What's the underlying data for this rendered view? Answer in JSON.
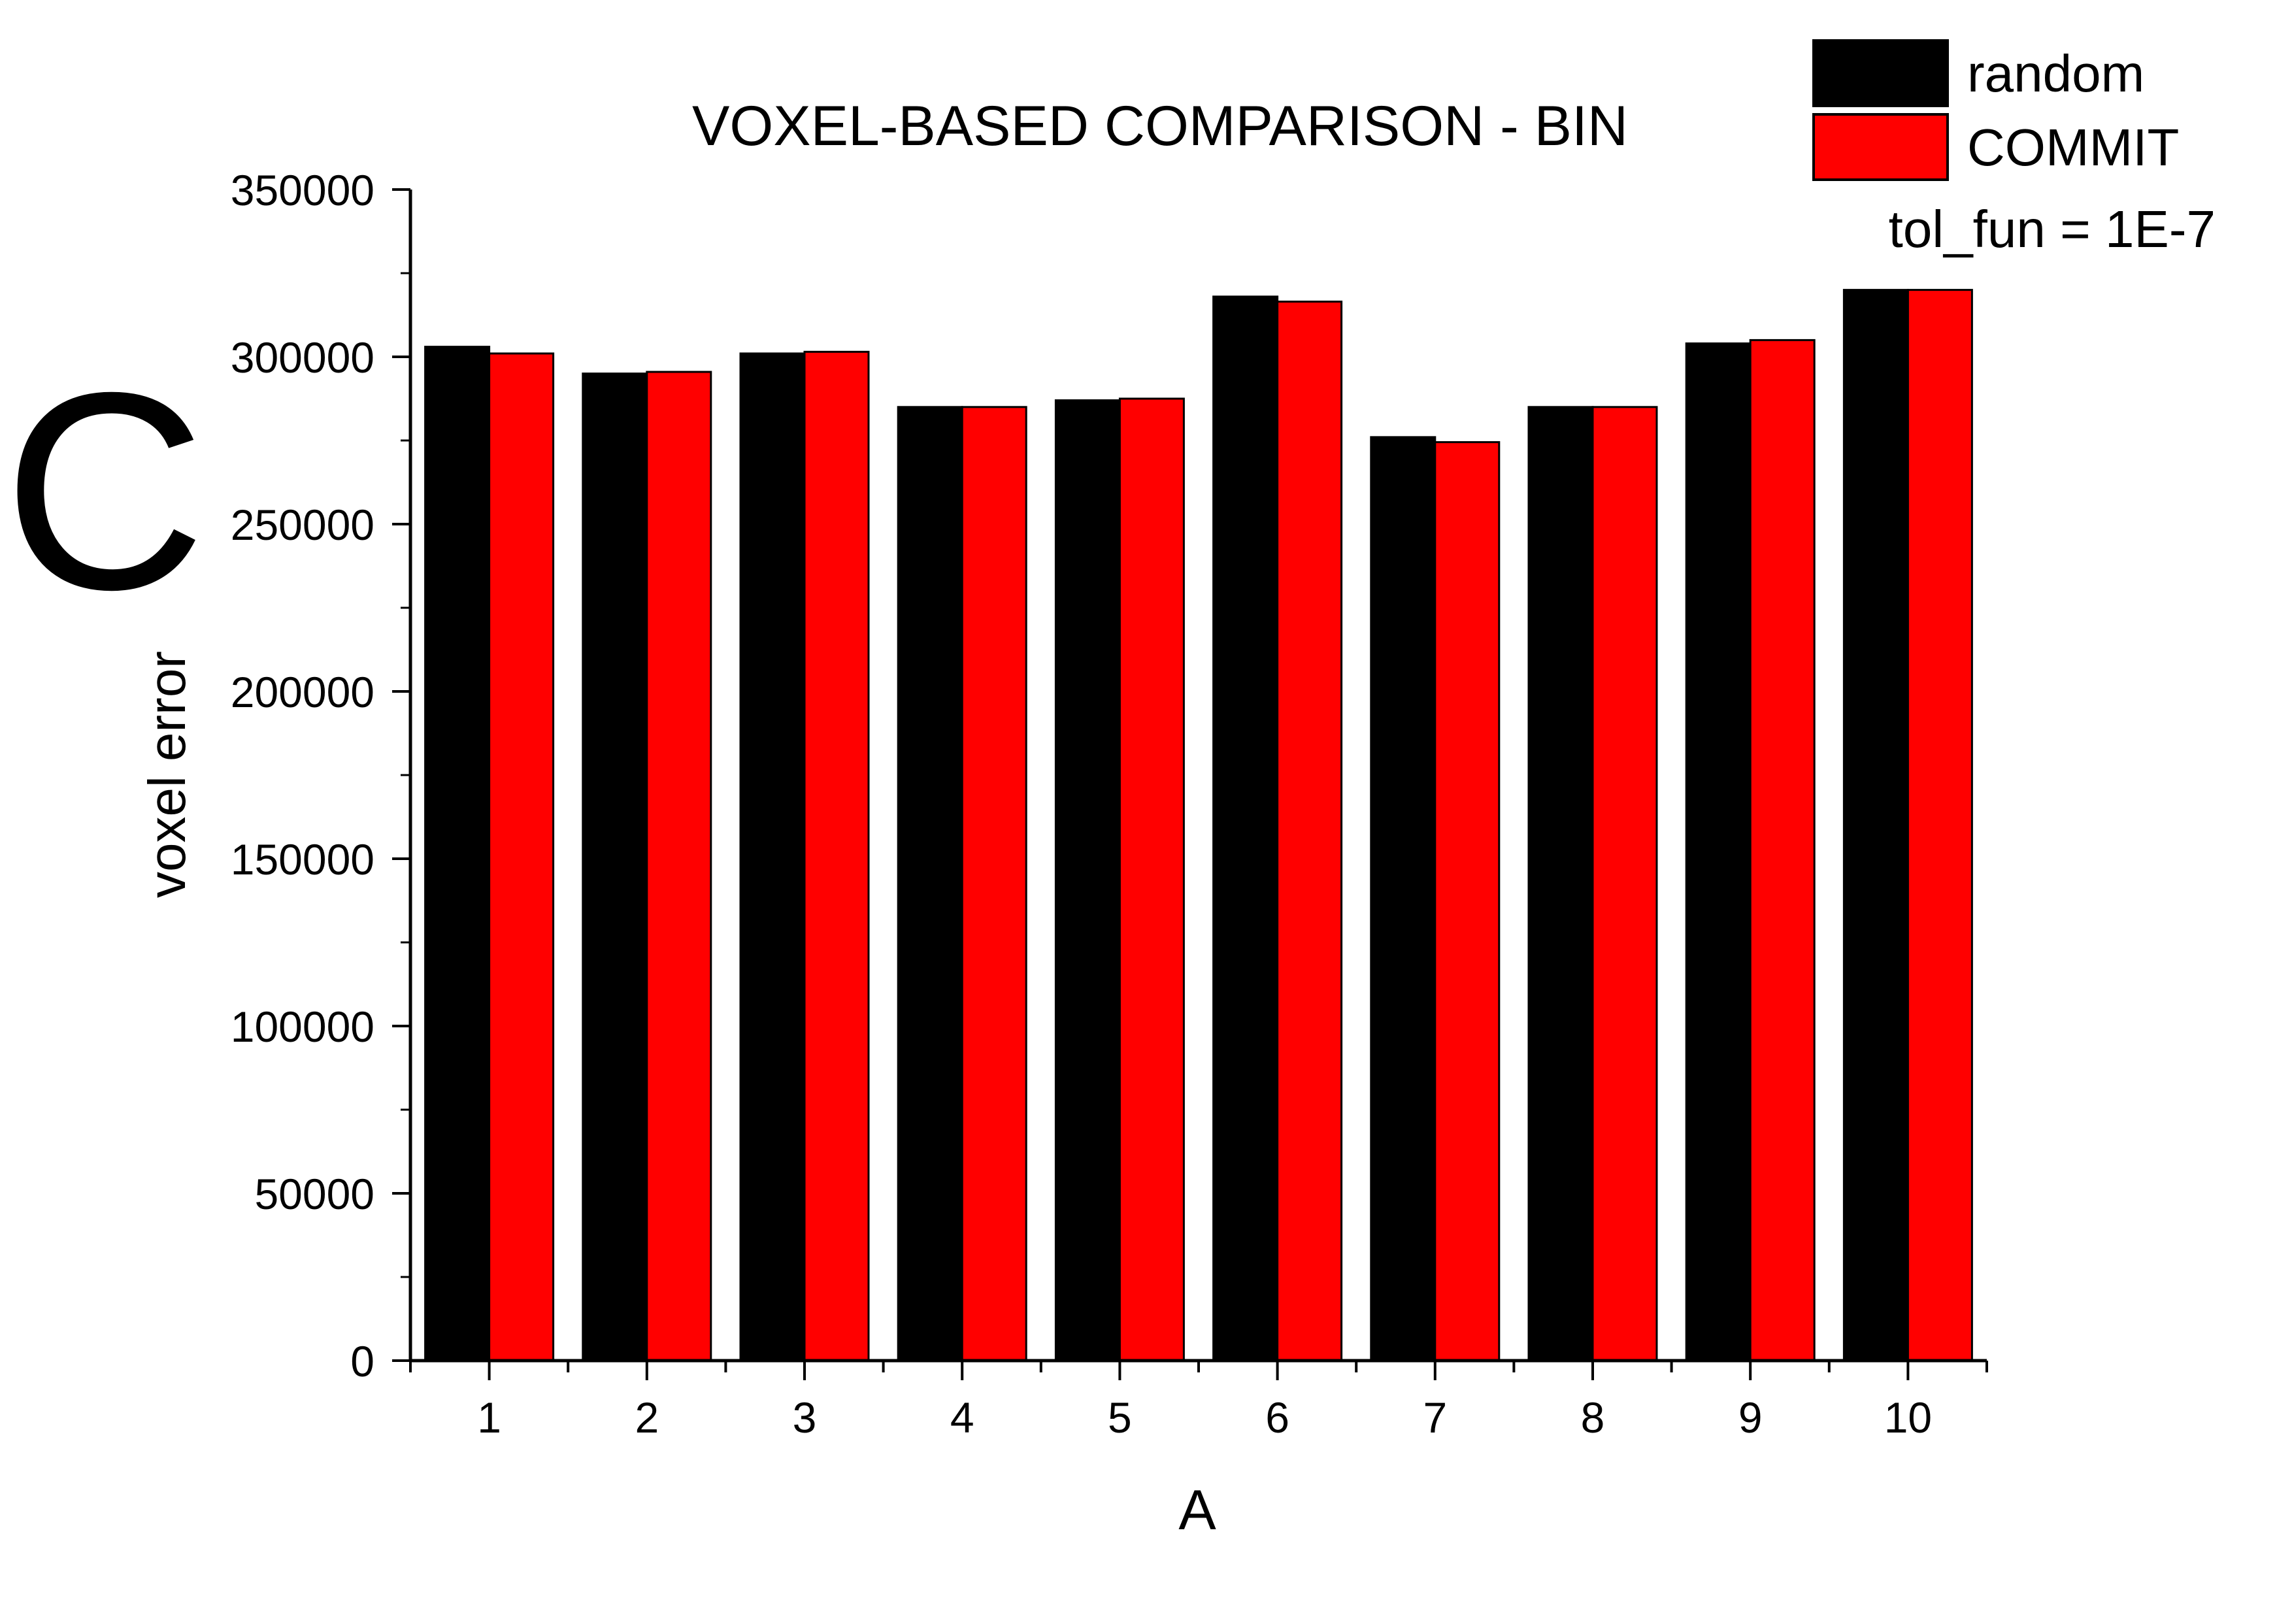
{
  "panel_label": "C",
  "chart_data": {
    "type": "bar",
    "title": "VOXEL-BASED COMPARISON - BIN",
    "xlabel": "A",
    "ylabel": "voxel error",
    "categories": [
      "1",
      "2",
      "3",
      "4",
      "5",
      "6",
      "7",
      "8",
      "9",
      "10"
    ],
    "series": [
      {
        "name": "random",
        "color": "#000000",
        "values": [
          303000,
          295000,
          301000,
          285000,
          287000,
          318000,
          276000,
          285000,
          304000,
          320000
        ]
      },
      {
        "name": "COMMIT",
        "color": "#ff0000",
        "values": [
          301000,
          295500,
          301500,
          285000,
          287500,
          316500,
          274500,
          285000,
          305000,
          320000
        ]
      }
    ],
    "ylim": [
      0,
      350000
    ],
    "yticks": [
      "0",
      "50000",
      "100000",
      "150000",
      "200000",
      "250000",
      "300000",
      "350000"
    ],
    "grid": false,
    "legend": {
      "position": "top-right",
      "note": "tol_fun = 1E-7"
    }
  }
}
